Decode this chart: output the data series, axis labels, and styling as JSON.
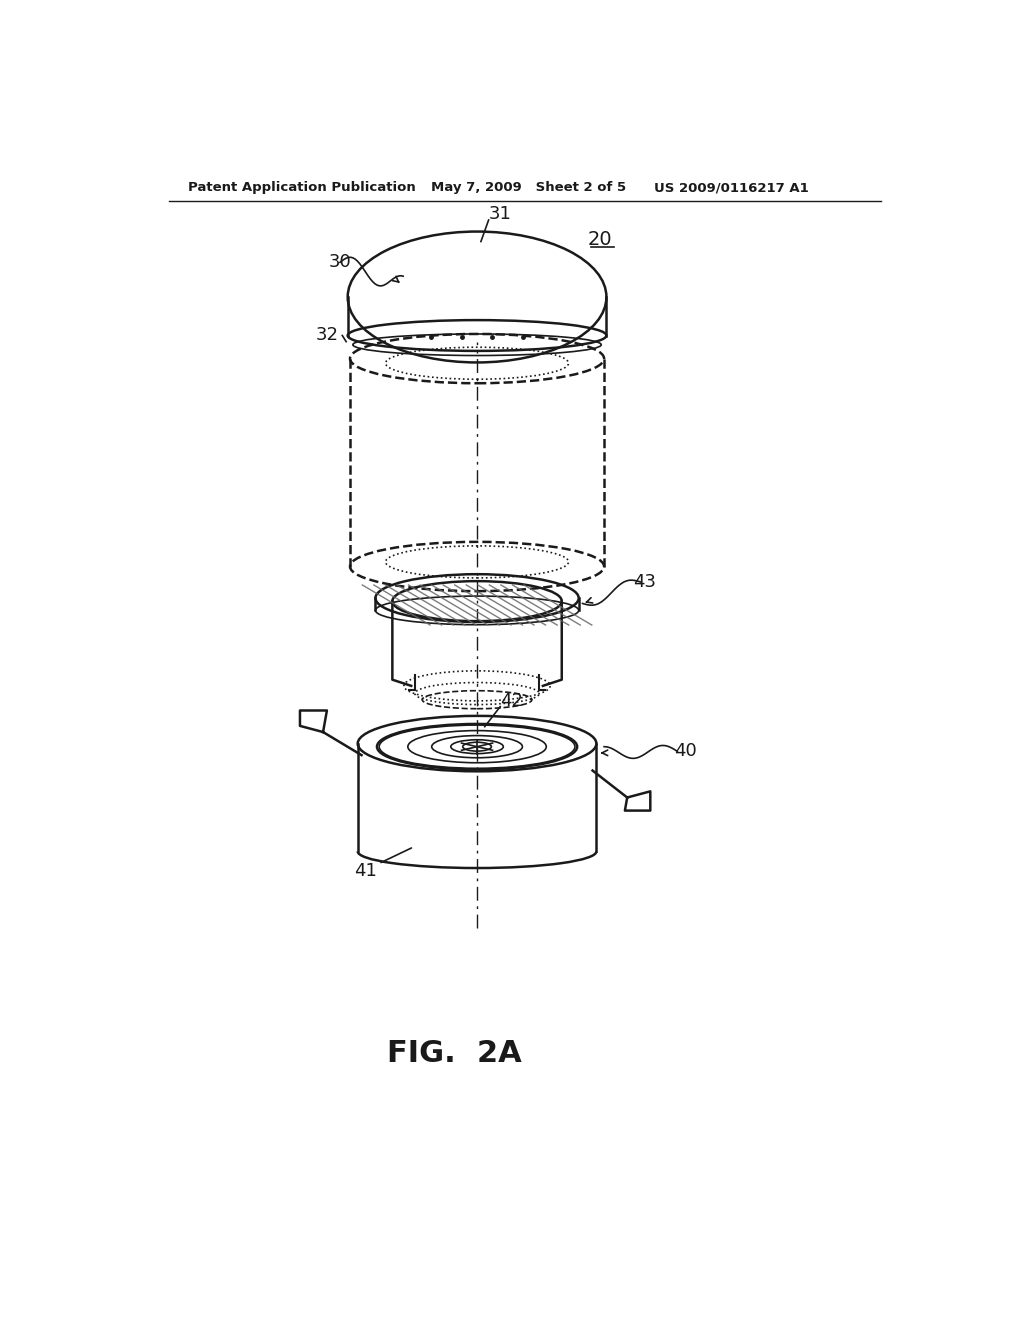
{
  "bg_color": "#ffffff",
  "header_left": "Patent Application Publication",
  "header_mid": "May 7, 2009   Sheet 2 of 5",
  "header_right": "US 2009/0116217 A1",
  "fig_label": "FIG.  2A",
  "label_20": "20",
  "label_30": "30",
  "label_31": "31",
  "label_32": "32",
  "label_40": "40",
  "label_41": "41",
  "label_42": "42",
  "label_43": "43",
  "line_color": "#1a1a1a"
}
